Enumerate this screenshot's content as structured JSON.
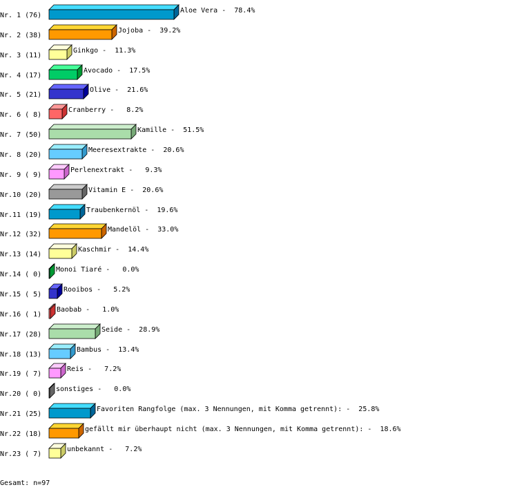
{
  "chart_data": {
    "type": "bar",
    "orientation": "horizontal",
    "style": "3d",
    "xlim": [
      0,
      100
    ],
    "grid": false,
    "rows": [
      {
        "label": "Nr. 1 (76)",
        "text": "Aloe Vera -  78.4%",
        "name": "Aloe Vera",
        "count": 76,
        "value": 78.4
      },
      {
        "label": "Nr. 2 (38)",
        "text": "Jojoba -  39.2%",
        "name": "Jojoba",
        "count": 38,
        "value": 39.2
      },
      {
        "label": "Nr. 3 (11)",
        "text": "Ginkgo -  11.3%",
        "name": "Ginkgo",
        "count": 11,
        "value": 11.3
      },
      {
        "label": "Nr. 4 (17)",
        "text": "Avocado -  17.5%",
        "name": "Avocado",
        "count": 17,
        "value": 17.5
      },
      {
        "label": "Nr. 5 (21)",
        "text": "Olive -  21.6%",
        "name": "Olive",
        "count": 21,
        "value": 21.6
      },
      {
        "label": "Nr. 6 ( 8)",
        "text": "Cranberry -   8.2%",
        "name": "Cranberry",
        "count": 8,
        "value": 8.2
      },
      {
        "label": "Nr. 7 (50)",
        "text": "Kamille -  51.5%",
        "name": "Kamille",
        "count": 50,
        "value": 51.5
      },
      {
        "label": "Nr. 8 (20)",
        "text": "Meeresextrakte -  20.6%",
        "name": "Meeresextrakte",
        "count": 20,
        "value": 20.6
      },
      {
        "label": "Nr. 9 ( 9)",
        "text": "Perlenextrakt -   9.3%",
        "name": "Perlenextrakt",
        "count": 9,
        "value": 9.3
      },
      {
        "label": "Nr.10 (20)",
        "text": "Vitamin E -  20.6%",
        "name": "Vitamin E",
        "count": 20,
        "value": 20.6
      },
      {
        "label": "Nr.11 (19)",
        "text": "Traubenkernöl -  19.6%",
        "name": "Traubenkernöl",
        "count": 19,
        "value": 19.6
      },
      {
        "label": "Nr.12 (32)",
        "text": "Mandelöl -  33.0%",
        "name": "Mandelöl",
        "count": 32,
        "value": 33.0
      },
      {
        "label": "Nr.13 (14)",
        "text": "Kaschmir -  14.4%",
        "name": "Kaschmir",
        "count": 14,
        "value": 14.4
      },
      {
        "label": "Nr.14 ( 0)",
        "text": "Monoi Tiaré -   0.0%",
        "name": "Monoi Tiaré",
        "count": 0,
        "value": 0.0
      },
      {
        "label": "Nr.15 ( 5)",
        "text": "Rooibos -   5.2%",
        "name": "Rooibos",
        "count": 5,
        "value": 5.2
      },
      {
        "label": "Nr.16 ( 1)",
        "text": "Baobab -   1.0%",
        "name": "Baobab",
        "count": 1,
        "value": 1.0
      },
      {
        "label": "Nr.17 (28)",
        "text": "Seide -  28.9%",
        "name": "Seide",
        "count": 28,
        "value": 28.9
      },
      {
        "label": "Nr.18 (13)",
        "text": "Bambus -  13.4%",
        "name": "Bambus",
        "count": 13,
        "value": 13.4
      },
      {
        "label": "Nr.19 ( 7)",
        "text": "Reis -   7.2%",
        "name": "Reis",
        "count": 7,
        "value": 7.2
      },
      {
        "label": "Nr.20 ( 0)",
        "text": "sonstiges -   0.0%",
        "name": "sonstiges",
        "count": 0,
        "value": 0.0
      },
      {
        "label": "Nr.21 (25)",
        "text": "Favoriten Rangfolge (max. 3 Nennungen, mit Komma getrennt): -  25.8%",
        "name": "Favoriten Rangfolge (max. 3 Nennungen, mit Komma getrennt):",
        "count": 25,
        "value": 25.8
      },
      {
        "label": "Nr.22 (18)",
        "text": "gefällt mir überhaupt nicht (max. 3 Nennungen, mit Komma getrennt): -  18.6%",
        "name": "gefällt mir überhaupt nicht (max. 3 Nennungen, mit Komma getrennt):",
        "count": 18,
        "value": 18.6
      },
      {
        "label": "Nr.23 ( 7)",
        "text": "unbekannt -   7.2%",
        "name": "unbekannt",
        "count": 7,
        "value": 7.2
      }
    ],
    "palette": [
      {
        "front": "#0099cc",
        "top": "#44ddff",
        "side": "#006699"
      },
      {
        "front": "#ff9900",
        "top": "#ffd633",
        "side": "#cc6600"
      },
      {
        "front": "#ffff99",
        "top": "#ffffdd",
        "side": "#cccc66"
      },
      {
        "front": "#00cc66",
        "top": "#44ff99",
        "side": "#009933"
      },
      {
        "front": "#3333cc",
        "top": "#6666ff",
        "side": "#000099"
      },
      {
        "front": "#ff6666",
        "top": "#ff9999",
        "side": "#cc3333"
      },
      {
        "front": "#aaddaa",
        "top": "#cceecc",
        "side": "#77aa77"
      },
      {
        "front": "#66ccff",
        "top": "#99eeff",
        "side": "#3399cc"
      },
      {
        "front": "#ff99ff",
        "top": "#ffccff",
        "side": "#cc66cc"
      },
      {
        "front": "#999999",
        "top": "#cccccc",
        "side": "#666666"
      }
    ],
    "footer": "Gesamt: n=97"
  }
}
